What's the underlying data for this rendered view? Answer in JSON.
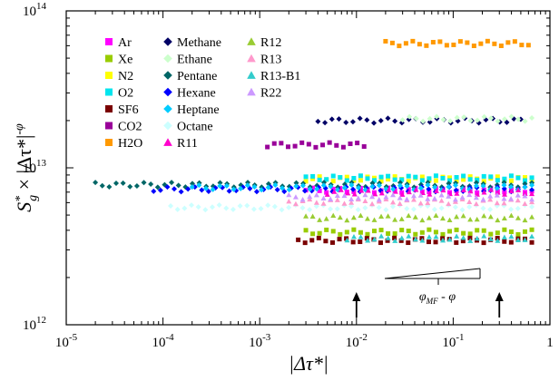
{
  "chart_data": {
    "type": "scatter",
    "title": "",
    "xscale": "log",
    "yscale": "log",
    "xlim": [
      1e-05,
      1
    ],
    "ylim": [
      1000000000000.0,
      100000000000000.0
    ],
    "grid": false,
    "legend_position": "top-left",
    "xlabel": "|Δτ*|",
    "ylabel": "S*g × |Δτ*|^-φ",
    "x_tick_labels": [
      {
        "base": "10",
        "exp": "-5"
      },
      {
        "base": "10",
        "exp": "-4"
      },
      {
        "base": "10",
        "exp": "-3"
      },
      {
        "base": "10",
        "exp": "-2"
      },
      {
        "base": "10",
        "exp": "-1"
      },
      {
        "base": "1",
        "exp": ""
      }
    ],
    "y_tick_labels": [
      {
        "base": "10",
        "exp": "12"
      },
      {
        "base": "10",
        "exp": "13"
      },
      {
        "base": "10",
        "exp": "14"
      }
    ],
    "annotation_text": "φMF - φ",
    "annotation_arrows_x": [
      0.01,
      0.3
    ],
    "series": [
      {
        "name": "Ar",
        "marker": "square",
        "color": "#ff00ff",
        "x_range": [
          0.003,
          0.65
        ],
        "y": 7200000000000.0
      },
      {
        "name": "Xe",
        "marker": "square",
        "color": "#99cc00",
        "x_range": [
          0.003,
          0.65
        ],
        "y": 3900000000000.0
      },
      {
        "name": "N2",
        "marker": "square",
        "color": "#ffff00",
        "x_range": [
          0.003,
          0.65
        ],
        "y": 8500000000000.0
      },
      {
        "name": "O2",
        "marker": "square",
        "color": "#00e5ee",
        "x_range": [
          0.003,
          0.65
        ],
        "y": 8600000000000.0
      },
      {
        "name": "SF6",
        "marker": "square",
        "color": "#7a0000",
        "x_range": [
          0.0025,
          0.65
        ],
        "y": 3450000000000.0
      },
      {
        "name": "CO2",
        "marker": "square",
        "color": "#990099",
        "x_range": [
          0.0012,
          0.012
        ],
        "y": 14000000000000.0
      },
      {
        "name": "H2O",
        "marker": "square",
        "color": "#ff9900",
        "x_range": [
          0.02,
          0.6
        ],
        "y": 62000000000000.0
      },
      {
        "name": "Methane",
        "marker": "diamond",
        "color": "#000066",
        "x_range": [
          0.004,
          0.5
        ],
        "y": 20000000000000.0
      },
      {
        "name": "Ethane",
        "marker": "diamond",
        "color": "#ccffcc",
        "x_range": [
          0.03,
          0.65
        ],
        "y": 20500000000000.0
      },
      {
        "name": "Pentane",
        "marker": "diamond",
        "color": "#006666",
        "x_range": [
          2e-05,
          0.65
        ],
        "y": 7800000000000.0
      },
      {
        "name": "Hexane",
        "marker": "diamond",
        "color": "#0000ff",
        "x_range": [
          8e-05,
          0.65
        ],
        "y": 7300000000000.0
      },
      {
        "name": "Heptane",
        "marker": "diamond",
        "color": "#00ccff",
        "x_range": [
          0.0002,
          0.65
        ],
        "y": 7500000000000.0
      },
      {
        "name": "Octane",
        "marker": "diamond",
        "color": "#ccffff",
        "x_range": [
          0.00012,
          0.65
        ],
        "y": 5600000000000.0
      },
      {
        "name": "R11",
        "marker": "triangle",
        "color": "#ff00cc",
        "x_range": [
          0.005,
          0.65
        ],
        "y": 7000000000000.0
      },
      {
        "name": "R12",
        "marker": "triangle",
        "color": "#99cc33",
        "x_range": [
          0.003,
          0.65
        ],
        "y": 4800000000000.0
      },
      {
        "name": "R13",
        "marker": "triangle",
        "color": "#ff99cc",
        "x_range": [
          0.002,
          0.65
        ],
        "y": 6100000000000.0
      },
      {
        "name": "R13-B1",
        "marker": "triangle",
        "color": "#33cccc",
        "x_range": [
          0.008,
          0.65
        ],
        "y": 3550000000000.0
      },
      {
        "name": "R22",
        "marker": "triangle",
        "color": "#cc99ff",
        "x_range": [
          0.002,
          0.65
        ],
        "y": 6500000000000.0
      }
    ]
  }
}
